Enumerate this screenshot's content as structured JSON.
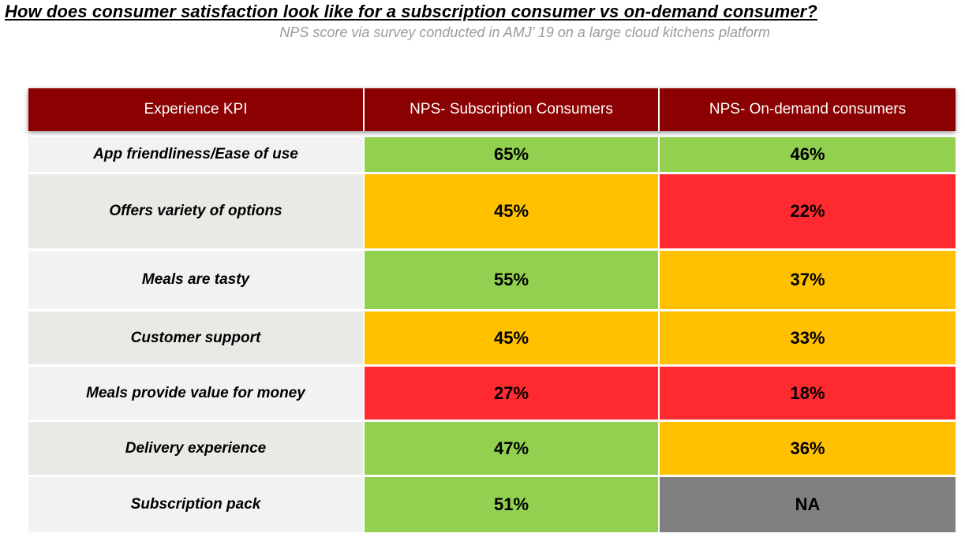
{
  "title": "How does consumer satisfaction look like for a subscription consumer vs on-demand consumer?",
  "subtitle": "NPS score via survey conducted in AMJ’ 19 on a large cloud kitchens platform",
  "colors": {
    "header": "#8b0000",
    "good": "#92d050",
    "medium": "#ffc000",
    "poor": "#ff2a2f",
    "not_available": "#808080"
  },
  "table": {
    "headers": [
      "Experience KPI",
      "NPS- Subscription Consumers",
      "NPS- On-demand consumers"
    ],
    "rows": [
      {
        "kpi": "App friendliness/Ease of use",
        "subscription": "65%",
        "on_demand": "46%",
        "subscription_rating": "good",
        "on_demand_rating": "good"
      },
      {
        "kpi": "Offers variety of options",
        "subscription": "45%",
        "on_demand": "22%",
        "subscription_rating": "medium",
        "on_demand_rating": "poor"
      },
      {
        "kpi": "Meals are tasty",
        "subscription": "55%",
        "on_demand": "37%",
        "subscription_rating": "good",
        "on_demand_rating": "medium"
      },
      {
        "kpi": "Customer support",
        "subscription": "45%",
        "on_demand": "33%",
        "subscription_rating": "medium",
        "on_demand_rating": "medium"
      },
      {
        "kpi": "Meals provide value for money",
        "subscription": "27%",
        "on_demand": "18%",
        "subscription_rating": "poor",
        "on_demand_rating": "poor"
      },
      {
        "kpi": "Delivery experience",
        "subscription": "47%",
        "on_demand": "36%",
        "subscription_rating": "good",
        "on_demand_rating": "medium"
      },
      {
        "kpi": "Subscription pack",
        "subscription": "51%",
        "on_demand": "NA",
        "subscription_rating": "good",
        "on_demand_rating": "not_available"
      }
    ]
  }
}
